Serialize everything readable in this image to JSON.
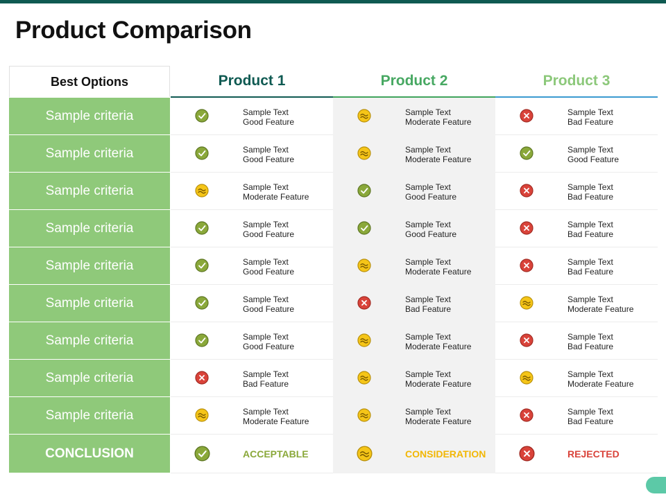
{
  "title": "Product Comparison",
  "header": {
    "best_options": "Best Options",
    "products": [
      "Product 1",
      "Product 2",
      "Product 3"
    ]
  },
  "status_icons": {
    "good": {
      "icon": "check-icon",
      "fill": "#8aa83a",
      "stroke": "#5d7623"
    },
    "moderate": {
      "icon": "wave-icon",
      "fill": "#f5c518",
      "stroke": "#b8900c"
    },
    "bad": {
      "icon": "cross-icon",
      "fill": "#d9433a",
      "stroke": "#a12a22"
    }
  },
  "rows": [
    {
      "criteria": "Sample criteria",
      "cells": [
        {
          "status": "good",
          "line1": "Sample Text",
          "line2": "Good Feature"
        },
        {
          "status": "moderate",
          "line1": "Sample Text",
          "line2": "Moderate Feature"
        },
        {
          "status": "bad",
          "line1": "Sample Text",
          "line2": "Bad Feature"
        }
      ]
    },
    {
      "criteria": "Sample criteria",
      "cells": [
        {
          "status": "good",
          "line1": "Sample Text",
          "line2": "Good Feature"
        },
        {
          "status": "moderate",
          "line1": "Sample Text",
          "line2": "Moderate Feature"
        },
        {
          "status": "good",
          "line1": "Sample Text",
          "line2": "Good Feature"
        }
      ]
    },
    {
      "criteria": "Sample criteria",
      "cells": [
        {
          "status": "moderate",
          "line1": "Sample Text",
          "line2": "Moderate Feature"
        },
        {
          "status": "good",
          "line1": "Sample Text",
          "line2": "Good Feature"
        },
        {
          "status": "bad",
          "line1": "Sample Text",
          "line2": "Bad Feature"
        }
      ]
    },
    {
      "criteria": "Sample criteria",
      "cells": [
        {
          "status": "good",
          "line1": "Sample Text",
          "line2": "Good Feature"
        },
        {
          "status": "good",
          "line1": "Sample Text",
          "line2": "Good Feature"
        },
        {
          "status": "bad",
          "line1": "Sample Text",
          "line2": "Bad Feature"
        }
      ]
    },
    {
      "criteria": "Sample criteria",
      "cells": [
        {
          "status": "good",
          "line1": "Sample Text",
          "line2": "Good Feature"
        },
        {
          "status": "moderate",
          "line1": "Sample Text",
          "line2": "Moderate Feature"
        },
        {
          "status": "bad",
          "line1": "Sample Text",
          "line2": "Bad Feature"
        }
      ]
    },
    {
      "criteria": "Sample criteria",
      "cells": [
        {
          "status": "good",
          "line1": "Sample Text",
          "line2": "Good Feature"
        },
        {
          "status": "bad",
          "line1": "Sample Text",
          "line2": "Bad Feature"
        },
        {
          "status": "moderate",
          "line1": "Sample Text",
          "line2": "Moderate Feature"
        }
      ]
    },
    {
      "criteria": "Sample criteria",
      "cells": [
        {
          "status": "good",
          "line1": "Sample Text",
          "line2": "Good Feature"
        },
        {
          "status": "moderate",
          "line1": "Sample Text",
          "line2": "Moderate Feature"
        },
        {
          "status": "bad",
          "line1": "Sample Text",
          "line2": "Bad Feature"
        }
      ]
    },
    {
      "criteria": "Sample criteria",
      "cells": [
        {
          "status": "bad",
          "line1": "Sample Text",
          "line2": "Bad Feature"
        },
        {
          "status": "moderate",
          "line1": "Sample Text",
          "line2": "Moderate Feature"
        },
        {
          "status": "moderate",
          "line1": "Sample Text",
          "line2": "Moderate Feature"
        }
      ]
    },
    {
      "criteria": "Sample criteria",
      "cells": [
        {
          "status": "moderate",
          "line1": "Sample Text",
          "line2": "Moderate Feature"
        },
        {
          "status": "moderate",
          "line1": "Sample Text",
          "line2": "Moderate Feature"
        },
        {
          "status": "bad",
          "line1": "Sample Text",
          "line2": "Bad Feature"
        }
      ]
    }
  ],
  "conclusion": {
    "label": "CONCLUSION",
    "cells": [
      {
        "status": "good",
        "text": "ACCEPTABLE",
        "color": "#8aa83a"
      },
      {
        "status": "moderate",
        "text": "CONSIDERATION",
        "color": "#f2b705"
      },
      {
        "status": "bad",
        "text": "REJECTED",
        "color": "#d9433a"
      }
    ]
  },
  "colors": {
    "top_bar": "#0f5a52",
    "criteria_bg": "#8fc97a",
    "product1": "#0f5a52",
    "product2": "#47a862",
    "product3": "#8cc87a",
    "corner_accent": "#5cc9a7"
  }
}
